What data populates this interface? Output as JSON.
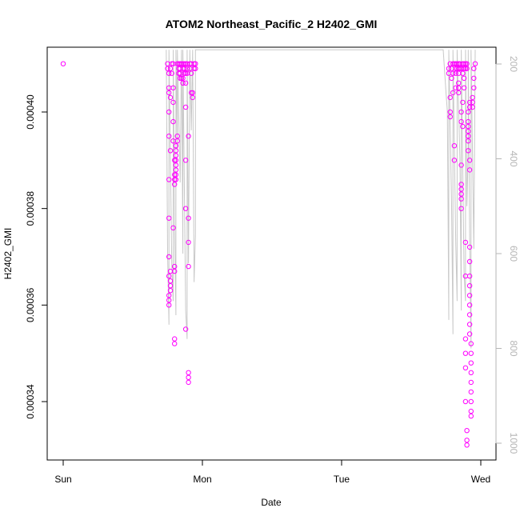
{
  "chart_data": {
    "type": "scatter",
    "title": "ATOM2 Northeast_Pacific_2 H2402_GMI",
    "xlabel": "Date",
    "ylabel": "H2402_GMI",
    "xlim": [
      0,
      3.12
    ],
    "ylim": [
      0.000331,
      0.000415
    ],
    "x_ticks": [
      {
        "value": 0,
        "label": "Sun"
      },
      {
        "value": 1,
        "label": "Mon"
      },
      {
        "value": 2,
        "label": "Tue"
      },
      {
        "value": 3,
        "label": "Wed"
      }
    ],
    "y_ticks": [
      {
        "value": 0.00034,
        "label": "0.00034"
      },
      {
        "value": 0.00036,
        "label": "0.00036"
      },
      {
        "value": 0.00038,
        "label": "0.00038"
      },
      {
        "value": 0.0004,
        "label": "0.00040"
      }
    ],
    "y2_label": "",
    "y2_reversed": true,
    "y2_lim": [
      1030,
      170
    ],
    "y2_ticks": [
      {
        "value": 200,
        "label": "200"
      },
      {
        "value": 400,
        "label": "400"
      },
      {
        "value": 600,
        "label": "600"
      },
      {
        "value": 800,
        "label": "800"
      },
      {
        "value": 1000,
        "label": "1000"
      }
    ],
    "grid": false,
    "series": [
      {
        "color": "#ff00ff",
        "marker": "open-circle",
        "points": [
          [
            0.0,
            0.00041
          ],
          [
            0.75,
            0.00041
          ],
          [
            0.75,
            0.000409
          ],
          [
            0.76,
            0.000408
          ],
          [
            0.76,
            0.000405
          ],
          [
            0.76,
            0.000404
          ],
          [
            0.76,
            0.0004
          ],
          [
            0.76,
            0.000395
          ],
          [
            0.76,
            0.000386
          ],
          [
            0.76,
            0.000378
          ],
          [
            0.76,
            0.00037
          ],
          [
            0.76,
            0.000366
          ],
          [
            0.76,
            0.000362
          ],
          [
            0.76,
            0.000361
          ],
          [
            0.76,
            0.00036
          ],
          [
            0.77,
            0.000409
          ],
          [
            0.77,
            0.000403
          ],
          [
            0.77,
            0.000392
          ],
          [
            0.77,
            0.000367
          ],
          [
            0.77,
            0.000365
          ],
          [
            0.77,
            0.000364
          ],
          [
            0.77,
            0.000363
          ],
          [
            0.78,
            0.00041
          ],
          [
            0.78,
            0.000408
          ],
          [
            0.79,
            0.00041
          ],
          [
            0.79,
            0.000405
          ],
          [
            0.79,
            0.000402
          ],
          [
            0.79,
            0.000398
          ],
          [
            0.79,
            0.000394
          ],
          [
            0.79,
            0.000376
          ],
          [
            0.8,
            0.00039
          ],
          [
            0.8,
            0.000387
          ],
          [
            0.8,
            0.000386
          ],
          [
            0.8,
            0.000385
          ],
          [
            0.8,
            0.000368
          ],
          [
            0.8,
            0.000367
          ],
          [
            0.8,
            0.000353
          ],
          [
            0.8,
            0.000352
          ],
          [
            0.81,
            0.000393
          ],
          [
            0.81,
            0.000392
          ],
          [
            0.81,
            0.000391
          ],
          [
            0.81,
            0.00039
          ],
          [
            0.81,
            0.000389
          ],
          [
            0.81,
            0.000388
          ],
          [
            0.81,
            0.000387
          ],
          [
            0.81,
            0.000386
          ],
          [
            0.82,
            0.000395
          ],
          [
            0.82,
            0.000394
          ],
          [
            0.82,
            0.00041
          ],
          [
            0.83,
            0.00041
          ],
          [
            0.83,
            0.000409
          ],
          [
            0.83,
            0.000408
          ],
          [
            0.84,
            0.00041
          ],
          [
            0.84,
            0.000409
          ],
          [
            0.84,
            0.000408
          ],
          [
            0.84,
            0.000407
          ],
          [
            0.85,
            0.00041
          ],
          [
            0.85,
            0.000407
          ],
          [
            0.86,
            0.00041
          ],
          [
            0.86,
            0.000409
          ],
          [
            0.86,
            0.000407
          ],
          [
            0.86,
            0.000406
          ],
          [
            0.87,
            0.00041
          ],
          [
            0.87,
            0.000409
          ],
          [
            0.87,
            0.000408
          ],
          [
            0.88,
            0.00041
          ],
          [
            0.88,
            0.000408
          ],
          [
            0.88,
            0.000406
          ],
          [
            0.88,
            0.000401
          ],
          [
            0.88,
            0.00039
          ],
          [
            0.88,
            0.00038
          ],
          [
            0.88,
            0.000355
          ],
          [
            0.89,
            0.00041
          ],
          [
            0.89,
            0.000409
          ],
          [
            0.89,
            0.000408
          ],
          [
            0.9,
            0.000395
          ],
          [
            0.9,
            0.000378
          ],
          [
            0.9,
            0.000373
          ],
          [
            0.9,
            0.000368
          ],
          [
            0.9,
            0.000346
          ],
          [
            0.9,
            0.000345
          ],
          [
            0.9,
            0.000344
          ],
          [
            0.91,
            0.00041
          ],
          [
            0.91,
            0.000409
          ],
          [
            0.92,
            0.00041
          ],
          [
            0.92,
            0.000408
          ],
          [
            0.92,
            0.000404
          ],
          [
            0.93,
            0.000404
          ],
          [
            0.93,
            0.000403
          ],
          [
            0.94,
            0.000409
          ],
          [
            0.94,
            0.00041
          ],
          [
            0.95,
            0.00041
          ],
          [
            0.95,
            0.000409
          ],
          [
            2.77,
            0.000409
          ],
          [
            2.77,
            0.000408
          ],
          [
            2.78,
            0.00041
          ],
          [
            2.78,
            0.000403
          ],
          [
            2.78,
            0.0004
          ],
          [
            2.78,
            0.000399
          ],
          [
            2.79,
            0.000409
          ],
          [
            2.79,
            0.000407
          ],
          [
            2.8,
            0.00041
          ],
          [
            2.8,
            0.000408
          ],
          [
            2.8,
            0.000404
          ],
          [
            2.81,
            0.00041
          ],
          [
            2.81,
            0.000393
          ],
          [
            2.81,
            0.00039
          ],
          [
            2.82,
            0.00041
          ],
          [
            2.82,
            0.000409
          ],
          [
            2.82,
            0.000408
          ],
          [
            2.82,
            0.000405
          ],
          [
            2.83,
            0.00041
          ],
          [
            2.83,
            0.000409
          ],
          [
            2.84,
            0.00041
          ],
          [
            2.84,
            0.000409
          ],
          [
            2.84,
            0.000408
          ],
          [
            2.84,
            0.000406
          ],
          [
            2.84,
            0.000405
          ],
          [
            2.84,
            0.000404
          ],
          [
            2.85,
            0.00041
          ],
          [
            2.85,
            0.000409
          ],
          [
            2.86,
            0.000409
          ],
          [
            2.86,
            0.0004
          ],
          [
            2.86,
            0.000398
          ],
          [
            2.86,
            0.000389
          ],
          [
            2.86,
            0.000385
          ],
          [
            2.86,
            0.000384
          ],
          [
            2.86,
            0.000383
          ],
          [
            2.86,
            0.000382
          ],
          [
            2.86,
            0.00038
          ],
          [
            2.87,
            0.00041
          ],
          [
            2.87,
            0.000408
          ],
          [
            2.87,
            0.000402
          ],
          [
            2.87,
            0.000397
          ],
          [
            2.88,
            0.00041
          ],
          [
            2.88,
            0.000409
          ],
          [
            2.88,
            0.000407
          ],
          [
            2.88,
            0.000405
          ],
          [
            2.89,
            0.00041
          ],
          [
            2.89,
            0.000409
          ],
          [
            2.89,
            0.000373
          ],
          [
            2.89,
            0.000366
          ],
          [
            2.89,
            0.000353
          ],
          [
            2.89,
            0.00035
          ],
          [
            2.89,
            0.000347
          ],
          [
            2.89,
            0.00034
          ],
          [
            2.9,
            0.00041
          ],
          [
            2.9,
            0.000409
          ],
          [
            2.9,
            0.000334
          ],
          [
            2.9,
            0.000332
          ],
          [
            2.9,
            0.000331
          ],
          [
            2.91,
            0.0004
          ],
          [
            2.91,
            0.000398
          ],
          [
            2.91,
            0.000397
          ],
          [
            2.91,
            0.000396
          ],
          [
            2.91,
            0.000395
          ],
          [
            2.91,
            0.000394
          ],
          [
            2.91,
            0.000392
          ],
          [
            2.92,
            0.000402
          ],
          [
            2.92,
            0.000401
          ],
          [
            2.92,
            0.00039
          ],
          [
            2.92,
            0.000388
          ],
          [
            2.92,
            0.000372
          ],
          [
            2.92,
            0.000369
          ],
          [
            2.92,
            0.000366
          ],
          [
            2.92,
            0.000364
          ],
          [
            2.92,
            0.000362
          ],
          [
            2.92,
            0.00036
          ],
          [
            2.92,
            0.000358
          ],
          [
            2.92,
            0.000356
          ],
          [
            2.92,
            0.000354
          ],
          [
            2.93,
            0.000352
          ],
          [
            2.93,
            0.00035
          ],
          [
            2.93,
            0.000348
          ],
          [
            2.93,
            0.000346
          ],
          [
            2.93,
            0.000344
          ],
          [
            2.93,
            0.000342
          ],
          [
            2.93,
            0.00034
          ],
          [
            2.93,
            0.000338
          ],
          [
            2.93,
            0.000337
          ],
          [
            2.94,
            0.000403
          ],
          [
            2.94,
            0.000402
          ],
          [
            2.94,
            0.000401
          ],
          [
            2.95,
            0.000407
          ],
          [
            2.95,
            0.000405
          ],
          [
            2.95,
            0.000409
          ],
          [
            2.96,
            0.00041
          ]
        ]
      },
      {
        "color": "#c8c8c8",
        "marker": "line",
        "axis": "y2",
        "points": [
          [
            0.74,
            170
          ],
          [
            0.75,
            600
          ],
          [
            0.76,
            750
          ],
          [
            0.76,
            170
          ],
          [
            0.78,
            620
          ],
          [
            0.79,
            700
          ],
          [
            0.79,
            170
          ],
          [
            0.8,
            540
          ],
          [
            0.81,
            730
          ],
          [
            0.81,
            170
          ],
          [
            0.82,
            380
          ],
          [
            0.82,
            170
          ],
          [
            0.84,
            450
          ],
          [
            0.85,
            170
          ],
          [
            0.86,
            600
          ],
          [
            0.86,
            170
          ],
          [
            0.88,
            720
          ],
          [
            0.89,
            780
          ],
          [
            0.89,
            170
          ],
          [
            0.9,
            620
          ],
          [
            0.91,
            170
          ],
          [
            0.92,
            340
          ],
          [
            0.93,
            170
          ],
          [
            0.94,
            660
          ],
          [
            0.95,
            560
          ],
          [
            0.95,
            170
          ],
          [
            2.73,
            170
          ],
          [
            2.75,
            260
          ],
          [
            2.76,
            300
          ],
          [
            2.77,
            740
          ],
          [
            2.77,
            170
          ],
          [
            2.79,
            500
          ],
          [
            2.8,
            770
          ],
          [
            2.8,
            170
          ],
          [
            2.82,
            580
          ],
          [
            2.83,
            700
          ],
          [
            2.83,
            170
          ],
          [
            2.85,
            400
          ],
          [
            2.86,
            720
          ],
          [
            2.86,
            170
          ],
          [
            2.88,
            640
          ],
          [
            2.89,
            700
          ],
          [
            2.89,
            170
          ],
          [
            2.9,
            500
          ],
          [
            2.91,
            380
          ],
          [
            2.91,
            170
          ],
          [
            2.92,
            570
          ],
          [
            2.93,
            800
          ],
          [
            2.93,
            170
          ],
          [
            2.95,
            590
          ],
          [
            2.96,
            170
          ]
        ]
      }
    ]
  }
}
